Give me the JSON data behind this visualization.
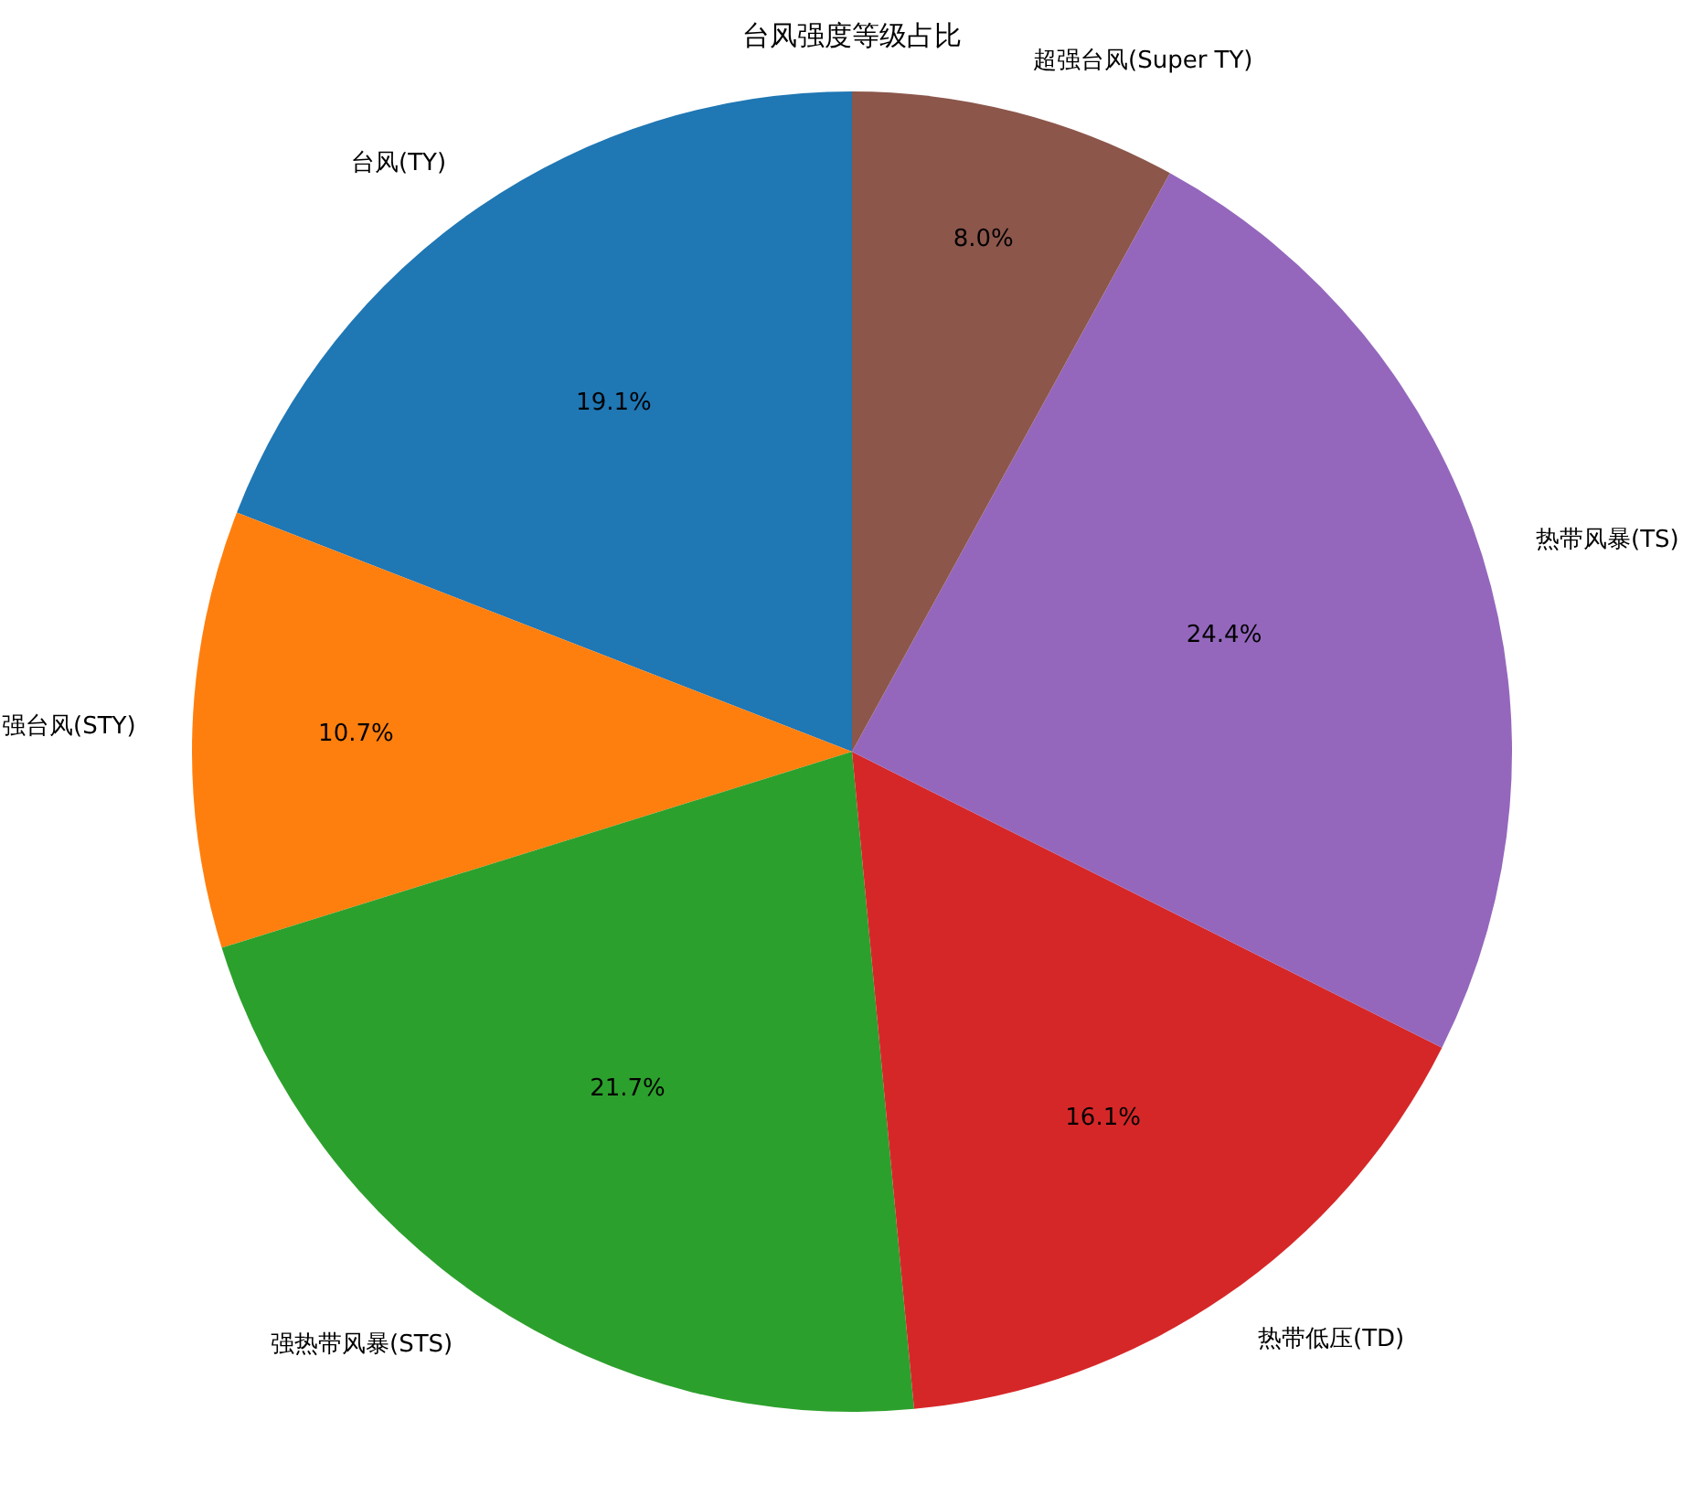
{
  "chart_data": {
    "type": "pie",
    "title": "台风强度等级占比",
    "categories": [
      "台风(TY)",
      "强台风(STY)",
      "强热带风暴(STS)",
      "热带低压(TD)",
      "热带风暴(TS)",
      "超强台风(Super TY)"
    ],
    "values": [
      19.1,
      10.7,
      21.7,
      16.1,
      24.4,
      8.0
    ],
    "colors": [
      "#1f77b4",
      "#ff7f0e",
      "#2ca02c",
      "#d62728",
      "#9467bd",
      "#8c564b"
    ],
    "value_labels": [
      "19.1%",
      "10.7%",
      "21.7%",
      "16.1%",
      "24.4%",
      "8.0%"
    ],
    "legend": false
  }
}
